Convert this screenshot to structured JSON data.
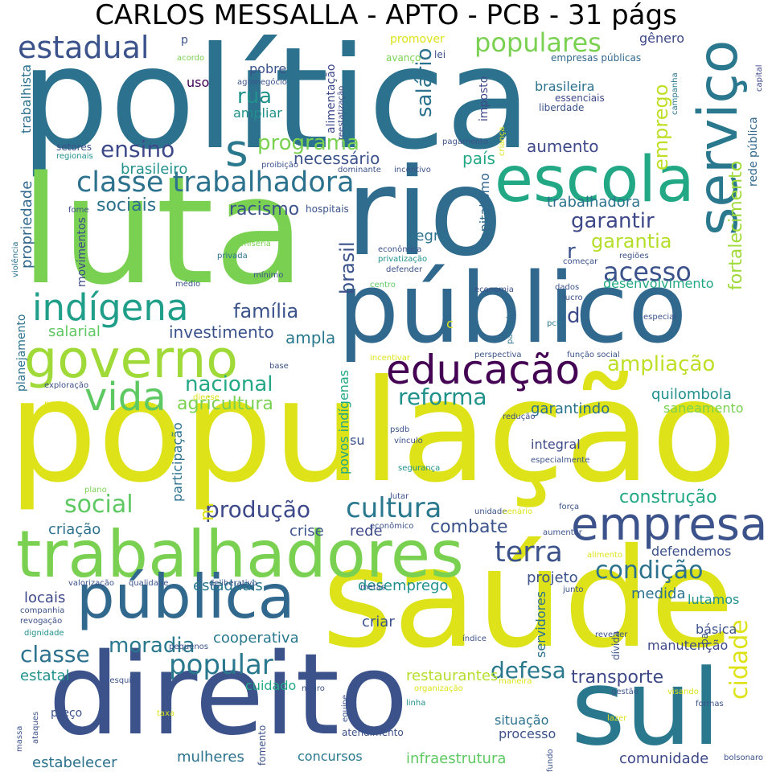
{
  "title": "CARLOS MESSALLA - APTO - PCB - 31 págs",
  "words": [
    {
      "text": "população",
      "color": "#dde318",
      "rot": 0
    },
    {
      "text": "política",
      "color": "#2c728e",
      "rot": 0
    },
    {
      "text": "saúde",
      "color": "#dde318",
      "rot": 0
    },
    {
      "text": "luta",
      "color": "#7ad151",
      "rot": 0
    },
    {
      "text": "rio",
      "color": "#2f6c8e",
      "rot": 0
    },
    {
      "text": "direito",
      "color": "#3b528b",
      "rot": 0
    },
    {
      "text": "público",
      "color": "#31688e",
      "rot": 0
    },
    {
      "text": "trabalhadores",
      "color": "#7ad151",
      "rot": 0
    },
    {
      "text": "sul",
      "color": "#2a788e",
      "rot": 0
    },
    {
      "text": "escola",
      "color": "#22a884",
      "rot": 0
    },
    {
      "text": "serviço",
      "color": "#2a788e",
      "rot": 90
    },
    {
      "text": "governo",
      "color": "#a0da39",
      "rot": 0
    },
    {
      "text": "pública",
      "color": "#31688e",
      "rot": 0
    },
    {
      "text": "educação",
      "color": "#440154",
      "rot": 0
    },
    {
      "text": "empresa",
      "color": "#3b528b",
      "rot": 0
    },
    {
      "text": "indígena",
      "color": "#1f9e89",
      "rot": 0
    },
    {
      "text": "vida",
      "color": "#5ec962",
      "rot": 0
    },
    {
      "text": "classe trabalhadora",
      "color": "#2c728e",
      "rot": 0
    },
    {
      "text": "s",
      "color": "#2a788e",
      "rot": 0
    },
    {
      "text": "estadual",
      "color": "#3b528b",
      "rot": 0
    },
    {
      "text": "populares",
      "color": "#7ad151",
      "rot": 0
    },
    {
      "text": "cultura",
      "color": "#2a788e",
      "rot": 0
    },
    {
      "text": "terra",
      "color": "#3b528b",
      "rot": 0
    },
    {
      "text": "condição",
      "color": "#2c728e",
      "rot": 0
    },
    {
      "text": "popular",
      "color": "#2a788e",
      "rot": 0
    },
    {
      "text": "social",
      "color": "#5ec962",
      "rot": 0
    },
    {
      "text": "produção",
      "color": "#3e4989",
      "rot": 0
    },
    {
      "text": "reforma",
      "color": "#21918c",
      "rot": 0
    },
    {
      "text": "nacional",
      "color": "#22a884",
      "rot": 0
    },
    {
      "text": "acesso",
      "color": "#3b528b",
      "rot": 0
    },
    {
      "text": "ampliação",
      "color": "#bddf26",
      "rot": 0
    },
    {
      "text": "classe",
      "color": "#2c728e",
      "rot": 0
    },
    {
      "text": "moradia",
      "color": "#2a788e",
      "rot": 0
    },
    {
      "text": "família",
      "color": "#3b528b",
      "rot": 0
    },
    {
      "text": "ensino",
      "color": "#3e4989",
      "rot": 0
    },
    {
      "text": "programa",
      "color": "#7ad151",
      "rot": 0
    },
    {
      "text": "rua",
      "color": "#21918c",
      "rot": 0
    },
    {
      "text": "cidade",
      "color": "#dde318",
      "rot": 90
    },
    {
      "text": "emprego",
      "color": "#bddf26",
      "rot": 90
    },
    {
      "text": "garantir",
      "color": "#3e4989",
      "rot": 0
    },
    {
      "text": "garantia",
      "color": "#b5de2b",
      "rot": 0
    },
    {
      "text": "salário",
      "color": "#2c728e",
      "rot": 90
    },
    {
      "text": "brasil",
      "color": "#3b528b",
      "rot": 90
    },
    {
      "text": "combate",
      "color": "#3b528b",
      "rot": 0
    },
    {
      "text": "defesa",
      "color": "#2a788e",
      "rot": 0
    },
    {
      "text": "construção",
      "color": "#22a884",
      "rot": 0
    },
    {
      "text": "transporte",
      "color": "#3e4989",
      "rot": 0
    },
    {
      "text": "fortalecimento",
      "color": "#a0da39",
      "rot": 90
    },
    {
      "text": "sociais",
      "color": "#2c728e",
      "rot": 0
    },
    {
      "text": "racismo",
      "color": "#3b528b",
      "rot": 0
    },
    {
      "text": "aumento",
      "color": "#3e4989",
      "rot": 0
    },
    {
      "text": "país",
      "color": "#22a884",
      "rot": 0
    },
    {
      "text": "necessário",
      "color": "#3b528b",
      "rot": 0
    },
    {
      "text": "brasileiro",
      "color": "#21918c",
      "rot": 0
    },
    {
      "text": "agricultura",
      "color": "#7ad151",
      "rot": 0
    },
    {
      "text": "investimento",
      "color": "#3b528b",
      "rot": 0
    },
    {
      "text": "ampla",
      "color": "#2a788e",
      "rot": 0
    },
    {
      "text": "salarial",
      "color": "#5ec962",
      "rot": 0
    },
    {
      "text": "quilombola",
      "color": "#21918c",
      "rot": 0
    },
    {
      "text": "garantindo",
      "color": "#2c728e",
      "rot": 0
    },
    {
      "text": "saneamento",
      "color": "#7ad151",
      "rot": 0
    },
    {
      "text": "integral",
      "color": "#3e4989",
      "rot": 0
    },
    {
      "text": "desenvolvimento",
      "color": "#22a884",
      "rot": 0
    },
    {
      "text": "trabalhadora",
      "color": "#2c728e",
      "rot": 0
    },
    {
      "text": "propriedade",
      "color": "#31688e",
      "rot": 90
    },
    {
      "text": "negra",
      "color": "#2c728e",
      "rot": 0
    },
    {
      "text": "crise",
      "color": "#3b528b",
      "rot": 0
    },
    {
      "text": "rede",
      "color": "#3e4989",
      "rot": 0
    },
    {
      "text": "criação",
      "color": "#2c728e",
      "rot": 0
    },
    {
      "text": "locais",
      "color": "#3e4989",
      "rot": 0
    },
    {
      "text": "estaduais",
      "color": "#2a788e",
      "rot": 0
    },
    {
      "text": "desemprego",
      "color": "#21918c",
      "rot": 0
    },
    {
      "text": "projeto",
      "color": "#3b528b",
      "rot": 0
    },
    {
      "text": "medida",
      "color": "#2c728e",
      "rot": 0
    },
    {
      "text": "lutamos",
      "color": "#21918c",
      "rot": 0
    },
    {
      "text": "cooperativa",
      "color": "#2a788e",
      "rot": 0
    },
    {
      "text": "manutenção",
      "color": "#3e4989",
      "rot": 0
    },
    {
      "text": "básica",
      "color": "#3b528b",
      "rot": 0
    },
    {
      "text": "restaurantes",
      "color": "#b5de2b",
      "rot": 0
    },
    {
      "text": "estatal",
      "color": "#21918c",
      "rot": 0
    },
    {
      "text": "cuidado",
      "color": "#22a884",
      "rot": 0
    },
    {
      "text": "situação",
      "color": "#2c728e",
      "rot": 0
    },
    {
      "text": "processo",
      "color": "#3b528b",
      "rot": 0
    },
    {
      "text": "infraestrutura",
      "color": "#5ec962",
      "rot": 0
    },
    {
      "text": "concursos",
      "color": "#2a788e",
      "rot": 0
    },
    {
      "text": "mulheres",
      "color": "#2c728e",
      "rot": 0
    },
    {
      "text": "estabelecer",
      "color": "#2c728e",
      "rot": 0
    },
    {
      "text": "comunidade",
      "color": "#3e4989",
      "rot": 0
    },
    {
      "text": "criar",
      "color": "#3b528b",
      "rot": 0
    },
    {
      "text": "defendemos",
      "color": "#3b528b",
      "rot": 0
    },
    {
      "text": "servidores",
      "color": "#2c728e",
      "rot": 90
    },
    {
      "text": "povos indígenas",
      "color": "#22a884",
      "rot": 90
    },
    {
      "text": "participação",
      "color": "#2c728e",
      "rot": 90
    },
    {
      "text": "su",
      "color": "#3b528b",
      "rot": 0
    },
    {
      "text": "capitalismo",
      "color": "#31688e",
      "rot": 90
    },
    {
      "text": "rede pública",
      "color": "#31688e",
      "rot": 90
    },
    {
      "text": "brasileira",
      "color": "#2c728e",
      "rot": 0
    },
    {
      "text": "promover",
      "color": "#dde318",
      "rot": 0
    },
    {
      "text": "pobre",
      "color": "#3b528b",
      "rot": 0
    },
    {
      "text": "uso",
      "color": "#440154",
      "rot": 0
    },
    {
      "text": "ampliar",
      "color": "#21918c",
      "rot": 0
    },
    {
      "text": "trabalhista",
      "color": "#2c728e",
      "rot": 90
    },
    {
      "text": "movimentos",
      "color": "#3e4989",
      "rot": 90
    },
    {
      "text": "planejamento",
      "color": "#2c728e",
      "rot": 90
    },
    {
      "text": "alimentação",
      "color": "#3e4989",
      "rot": 90
    },
    {
      "text": "imposto",
      "color": "#3e4989",
      "rot": 90
    },
    {
      "text": "gênero",
      "color": "#3e4989",
      "rot": 0
    },
    {
      "text": "m",
      "color": "#dde318",
      "rot": 90
    },
    {
      "text": "d",
      "color": "#3e4989",
      "rot": 0
    },
    {
      "text": "r",
      "color": "#3b528b",
      "rot": 0
    },
    {
      "text": "c",
      "color": "#dde318",
      "rot": 0
    },
    {
      "text": "p",
      "color": "#3b528b",
      "rot": 0
    },
    {
      "text": "empresas públicas",
      "color": "#31688e",
      "rot": 0
    },
    {
      "text": "essenciais",
      "color": "#3e4989",
      "rot": 0
    },
    {
      "text": "liberdade",
      "color": "#3b528b",
      "rot": 0
    },
    {
      "text": "agronegócio",
      "color": "#3b528b",
      "rot": 0
    },
    {
      "text": "acordo",
      "color": "#7ad151",
      "rot": 0
    },
    {
      "text": "avanço",
      "color": "#7ad151",
      "rot": 0
    },
    {
      "text": "lei",
      "color": "#3b528b",
      "rot": 0
    },
    {
      "text": "reestatização",
      "color": "#3e4989",
      "rot": 90
    },
    {
      "text": "campanha",
      "color": "#2a788e",
      "rot": 90
    },
    {
      "text": "capital",
      "color": "#3e4989",
      "rot": 90
    },
    {
      "text": "setores",
      "color": "#3b528b",
      "rot": 0
    },
    {
      "text": "regionais",
      "color": "#21918c",
      "rot": 0
    },
    {
      "text": "proibição",
      "color": "#3b528b",
      "rot": 0
    },
    {
      "text": "dominante",
      "color": "#3b528b",
      "rot": 0
    },
    {
      "text": "incentivo",
      "color": "#3b528b",
      "rot": 0
    },
    {
      "text": "pagamento",
      "color": "#3b528b",
      "rot": 0
    },
    {
      "text": "criança",
      "color": "#dde318",
      "rot": 90
    },
    {
      "text": "hospitais",
      "color": "#3b528b",
      "rot": 0
    },
    {
      "text": "fome",
      "color": "#3b528b",
      "rot": 0
    },
    {
      "text": "violência",
      "color": "#2c728e",
      "rot": 90
    },
    {
      "text": "miséria",
      "color": "#7ad151",
      "rot": 0
    },
    {
      "text": "privada",
      "color": "#2c728e",
      "rot": 0
    },
    {
      "text": "econômica",
      "color": "#3b528b",
      "rot": 0
    },
    {
      "text": "privatização",
      "color": "#21918c",
      "rot": 0
    },
    {
      "text": "defender",
      "color": "#3b528b",
      "rot": 0
    },
    {
      "text": "regiões",
      "color": "#3b528b",
      "rot": 0
    },
    {
      "text": "começar",
      "color": "#3b528b",
      "rot": 0
    },
    {
      "text": "mínimo",
      "color": "#3b528b",
      "rot": 0
    },
    {
      "text": "médio",
      "color": "#3b528b",
      "rot": 0
    },
    {
      "text": "centro",
      "color": "#5ec962",
      "rot": 0
    },
    {
      "text": "economia",
      "color": "#3b528b",
      "rot": 0
    },
    {
      "text": "dados",
      "color": "#3b528b",
      "rot": 0
    },
    {
      "text": "lucro",
      "color": "#3b528b",
      "rot": 0
    },
    {
      "text": "parceria",
      "color": "#2c728e",
      "rot": 90
    },
    {
      "text": "pcb",
      "color": "#2a788e",
      "rot": 0
    },
    {
      "text": "especial",
      "color": "#3b528b",
      "rot": 0
    },
    {
      "text": "perspectiva",
      "color": "#3b528b",
      "rot": 0
    },
    {
      "text": "função social",
      "color": "#3b528b",
      "rot": 0
    },
    {
      "text": "incentivar",
      "color": "#dde318",
      "rot": 0
    },
    {
      "text": "base",
      "color": "#3b528b",
      "rot": 0
    },
    {
      "text": "exploração",
      "color": "#3b528b",
      "rot": 0
    },
    {
      "text": "dieese",
      "color": "#dde318",
      "rot": 0
    },
    {
      "text": "povos",
      "color": "#dde318",
      "rot": 0
    },
    {
      "text": "redução",
      "color": "#3b528b",
      "rot": 0
    },
    {
      "text": "psdb",
      "color": "#3b528b",
      "rot": 0
    },
    {
      "text": "vínculo",
      "color": "#3b528b",
      "rot": 0
    },
    {
      "text": "especialmente",
      "color": "#3b528b",
      "rot": 0
    },
    {
      "text": "segurança",
      "color": "#21918c",
      "rot": 0
    },
    {
      "text": "plano",
      "color": "#7ad151",
      "rot": 0
    },
    {
      "text": "lutar",
      "color": "#3b528b",
      "rot": 0
    },
    {
      "text": "unidade",
      "color": "#3b528b",
      "rot": 0
    },
    {
      "text": "cenário",
      "color": "#dde318",
      "rot": 0
    },
    {
      "text": "força",
      "color": "#3b528b",
      "rot": 0
    },
    {
      "text": "econômico",
      "color": "#3b528b",
      "rot": 0
    },
    {
      "text": "aumentar",
      "color": "#3b528b",
      "rot": 0
    },
    {
      "text": "alimento",
      "color": "#dde318",
      "rot": 0
    },
    {
      "text": "valorização",
      "color": "#3b528b",
      "rot": 0
    },
    {
      "text": "qualidade",
      "color": "#3b528b",
      "rot": 0
    },
    {
      "text": "deliberativo",
      "color": "#3b528b",
      "rot": 0
    },
    {
      "text": "metas",
      "color": "#3b528b",
      "rot": 0
    },
    {
      "text": "junto",
      "color": "#3b528b",
      "rot": 0
    },
    {
      "text": "companhia",
      "color": "#3b528b",
      "rot": 0
    },
    {
      "text": "revogação",
      "color": "#3b528b",
      "rot": 0
    },
    {
      "text": "dignidade",
      "color": "#21918c",
      "rot": 0
    },
    {
      "text": "índice",
      "color": "#3b528b",
      "rot": 0
    },
    {
      "text": "pequenos",
      "color": "#3b528b",
      "rot": 0
    },
    {
      "text": "reverter",
      "color": "#3b528b",
      "rot": 0
    },
    {
      "text": "dívida",
      "color": "#3b528b",
      "rot": 90
    },
    {
      "text": "pa",
      "color": "#3b528b",
      "rot": 90
    },
    {
      "text": "pesquisa",
      "color": "#3b528b",
      "rot": 0
    },
    {
      "text": "negro",
      "color": "#3b528b",
      "rot": 0
    },
    {
      "text": "organização",
      "color": "#dde318",
      "rot": 0
    },
    {
      "text": "maneira",
      "color": "#dde318",
      "rot": 0
    },
    {
      "text": "gestão",
      "color": "#3b528b",
      "rot": 0
    },
    {
      "text": "visando",
      "color": "#dde318",
      "rot": 0
    },
    {
      "text": "formas",
      "color": "#3b528b",
      "rot": 0
    },
    {
      "text": "lazer",
      "color": "#dde318",
      "rot": 0
    },
    {
      "text": "taxa",
      "color": "#dde318",
      "rot": 0
    },
    {
      "text": "equipe",
      "color": "#3b528b",
      "rot": 90
    },
    {
      "text": "preço",
      "color": "#3b528b",
      "rot": 0
    },
    {
      "text": "ataques",
      "color": "#3b528b",
      "rot": 90
    },
    {
      "text": "massa",
      "color": "#3b528b",
      "rot": 90
    },
    {
      "text": "fomento",
      "color": "#3b528b",
      "rot": 90
    },
    {
      "text": "atendimento",
      "color": "#3b528b",
      "rot": 0
    },
    {
      "text": "linha",
      "color": "#21918c",
      "rot": 0
    },
    {
      "text": "fundo",
      "color": "#3b528b",
      "rot": 90
    },
    {
      "text": "bolsonaro",
      "color": "#3b528b",
      "rot": 0
    },
    {
      "text": "plena",
      "color": "#3b528b",
      "rot": 0
    }
  ]
}
